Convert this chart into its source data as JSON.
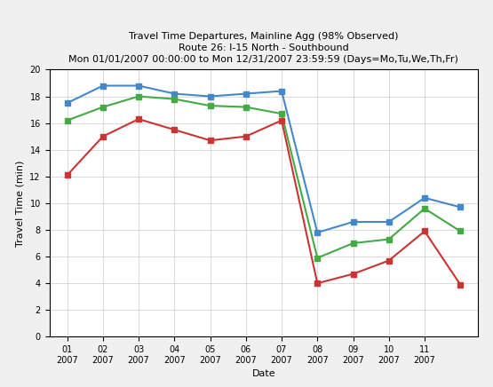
{
  "title_line1": "Travel Time Departures, Mainline Agg (98% Observed)",
  "title_line2": "Route 26: I-15 North - Southbound",
  "title_line3": "Mon 01/01/2007 00:00:00 to Mon 12/31/2007 23:59:59 (Days=Mo,Tu,We,Th,Fr)",
  "xlabel": "Date",
  "ylabel": "Travel Time (min)",
  "xlabels": [
    "01\n2007",
    "02\n2007",
    "03\n2007",
    "04\n2007",
    "05\n2007",
    "06\n2007",
    "07\n2007",
    "08\n2007",
    "09\n2007",
    "10\n2007",
    "11\n2007",
    ""
  ],
  "x_positions": [
    0,
    1,
    2,
    3,
    4,
    5,
    6,
    7,
    8,
    9,
    10,
    11
  ],
  "ylim": [
    0,
    20
  ],
  "yticks": [
    0,
    2,
    4,
    6,
    8,
    10,
    12,
    14,
    16,
    18,
    20
  ],
  "blue_line": [
    17.5,
    18.8,
    18.8,
    18.2,
    18.0,
    18.2,
    18.4,
    7.8,
    8.6,
    8.6,
    10.4,
    9.7
  ],
  "green_line": [
    16.2,
    17.2,
    18.0,
    17.8,
    17.3,
    17.2,
    16.7,
    5.9,
    7.0,
    7.3,
    9.6,
    7.9
  ],
  "red_line": [
    12.1,
    15.0,
    16.3,
    15.5,
    14.7,
    15.0,
    16.2,
    4.0,
    4.7,
    5.7,
    7.9,
    3.9
  ],
  "blue_color": "#4488cc",
  "green_color": "#44aa44",
  "red_color": "#cc3333",
  "bg_color": "#ffffff",
  "grid_color": "#cccccc",
  "marker": "s",
  "marker_size": 4,
  "line_width": 1.5,
  "title_fontsize": 8,
  "axis_label_fontsize": 8,
  "tick_fontsize": 7
}
